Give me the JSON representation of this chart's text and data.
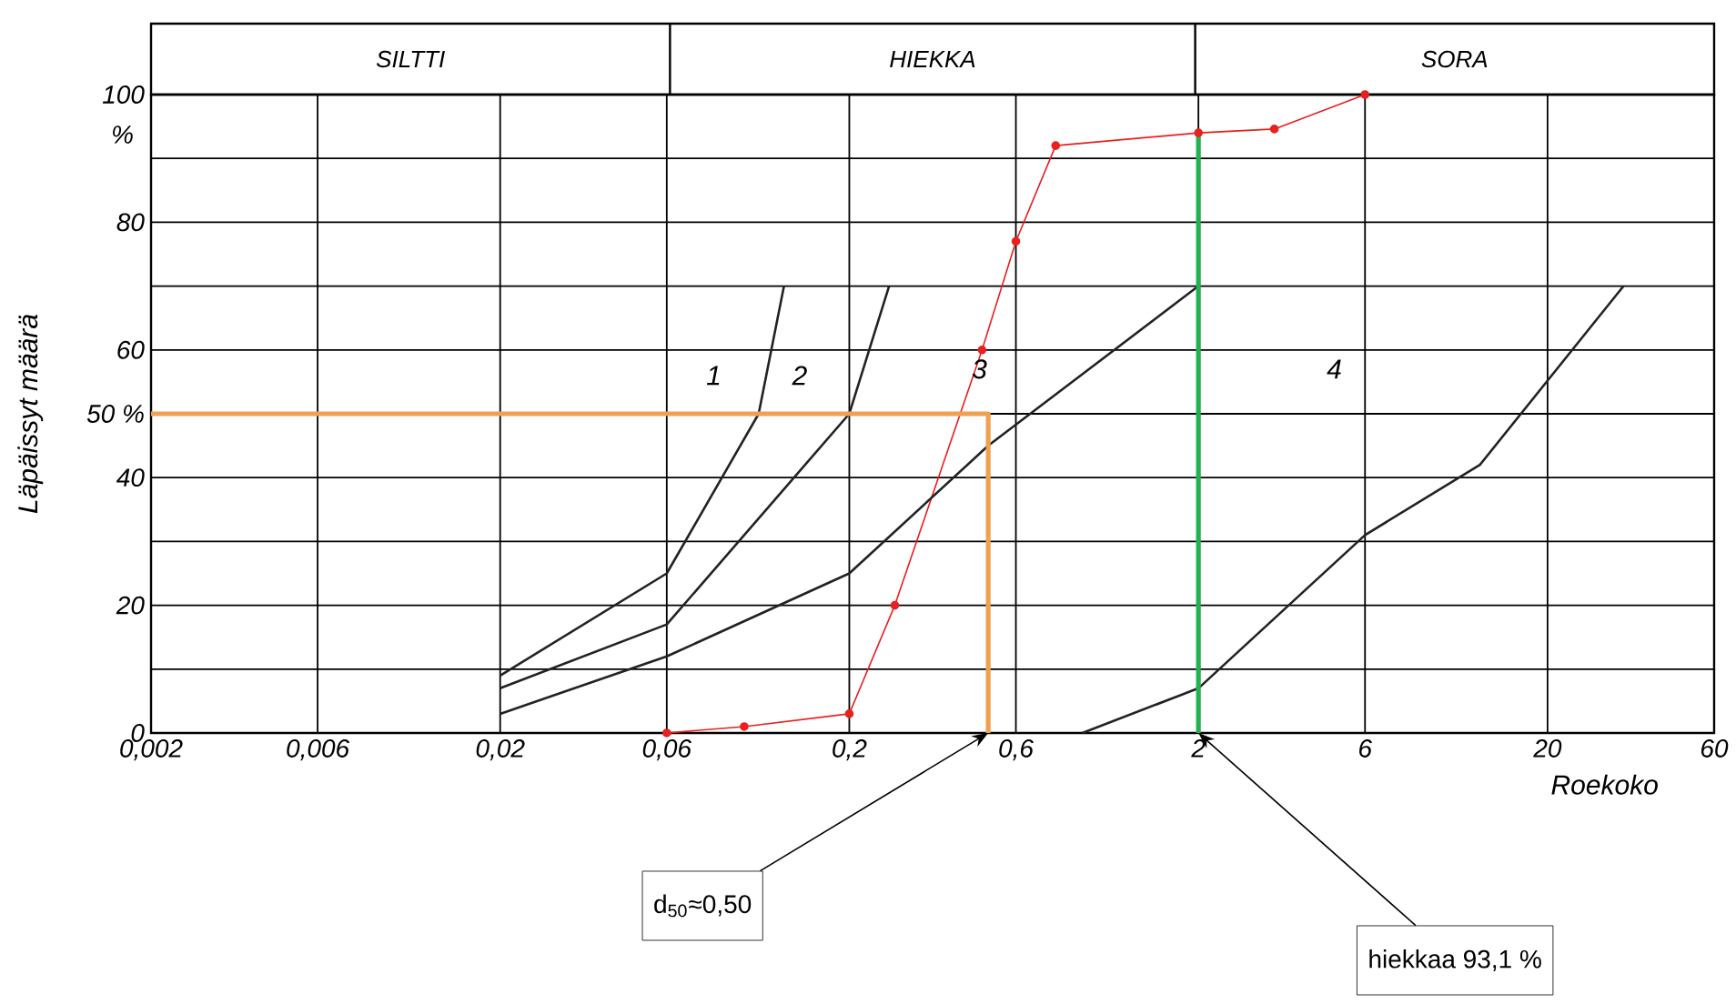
{
  "chart_data": {
    "type": "line",
    "xlabel": "Roekoko",
    "ylabel": "Läpäissyt määrä",
    "log": "x",
    "grid": true,
    "xlim": [
      0.002,
      60
    ],
    "ylim": [
      0,
      100
    ],
    "xticks": [
      {
        "value": 0.002,
        "label": "0,002"
      },
      {
        "value": 0.006,
        "label": "0,006"
      },
      {
        "value": 0.02,
        "label": "0,02"
      },
      {
        "value": 0.06,
        "label": "0,06"
      },
      {
        "value": 0.2,
        "label": "0,2"
      },
      {
        "value": 0.6,
        "label": "0,6"
      },
      2,
      6,
      20,
      60
    ],
    "yticks": [
      0,
      {
        "value": 10,
        "label": null
      },
      20,
      {
        "value": 30,
        "label": null
      },
      40,
      {
        "value": 50,
        "label": "50 %"
      },
      60,
      {
        "value": 70,
        "label": null
      },
      80,
      {
        "value": 90,
        "label": null
      },
      100
    ],
    "series": [
      {
        "color": "#e8201f",
        "marker": "circle",
        "x": [
          0.06,
          0.1,
          0.2,
          0.27,
          0.48,
          0.6,
          0.78,
          2,
          3.3,
          6
        ],
        "values": [
          0,
          1,
          3,
          20,
          60,
          77,
          92,
          94,
          94.6,
          100
        ]
      },
      {
        "color": "#222222",
        "x": [
          0.02,
          0.06,
          0.11,
          0.13
        ],
        "values": [
          9,
          25,
          50,
          70
        ]
      },
      {
        "color": "#222222",
        "x": [
          0.02,
          0.06,
          0.2,
          0.26
        ],
        "values": [
          7,
          17,
          50,
          70
        ]
      },
      {
        "color": "#222222",
        "x": [
          0.02,
          0.06,
          0.2,
          0.5,
          2
        ],
        "values": [
          3,
          12,
          25,
          45,
          70
        ]
      },
      {
        "color": "#222222",
        "x": [
          0.93,
          2,
          6,
          12.8,
          33
        ],
        "values": [
          0,
          7,
          31,
          42,
          70
        ]
      },
      {
        "color": "#f0a050",
        "x": [
          0.002,
          0.5,
          0.5
        ],
        "values": [
          50,
          50,
          0
        ]
      },
      {
        "color": "#22b14c",
        "x": [
          2,
          2
        ],
        "values": [
          0,
          94
        ]
      }
    ],
    "annotations": [
      "%",
      "1",
      "2",
      "3",
      "4",
      "SILTTI",
      "HIEKKA",
      "SORA",
      {
        "text": "d$_{50}$≈0,50",
        "x": 0.5,
        "y": 0
      },
      {
        "text": "hiekkaa 93,1 %",
        "x": 2,
        "y": 0
      }
    ]
  }
}
